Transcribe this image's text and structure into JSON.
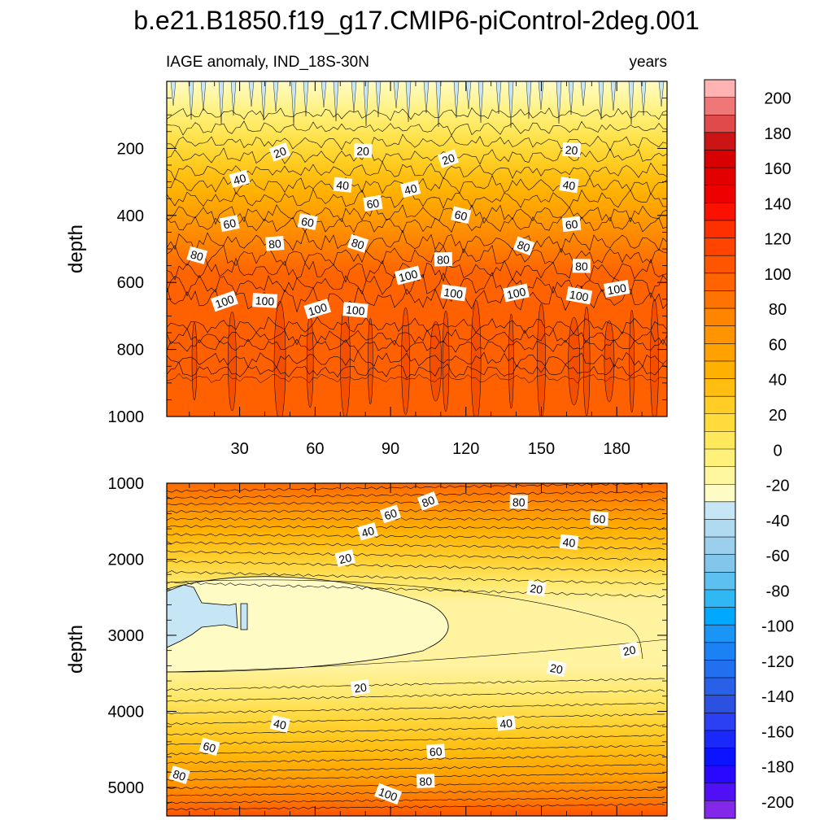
{
  "chart_data": {
    "type": "heatmap",
    "title": "b.e21.B1850.f19_g17.CMIP6-piControl-2deg.001",
    "variable_label": "IAGE anomaly, IND_18S-30N",
    "units_label": "years",
    "x_range": [
      1,
      200
    ],
    "x_ticks": [
      30,
      60,
      90,
      120,
      150,
      180
    ],
    "panels": [
      {
        "name": "upper",
        "ylabel": "depth",
        "ylim": [
          0,
          1000
        ],
        "y_ticks": [
          200,
          400,
          600,
          800,
          1000
        ],
        "contour_labels": [
          {
            "text": "20",
            "x": 46,
            "y": 212
          },
          {
            "text": "20",
            "x": 79,
            "y": 208
          },
          {
            "text": "20",
            "x": 113,
            "y": 232
          },
          {
            "text": "20",
            "x": 162,
            "y": 205
          },
          {
            "text": "40",
            "x": 30,
            "y": 292
          },
          {
            "text": "40",
            "x": 71,
            "y": 310
          },
          {
            "text": "40",
            "x": 98,
            "y": 322
          },
          {
            "text": "40",
            "x": 161,
            "y": 310
          },
          {
            "text": "60",
            "x": 26,
            "y": 425
          },
          {
            "text": "60",
            "x": 57,
            "y": 420
          },
          {
            "text": "60",
            "x": 83,
            "y": 365
          },
          {
            "text": "60",
            "x": 118,
            "y": 400
          },
          {
            "text": "60",
            "x": 162,
            "y": 427
          },
          {
            "text": "80",
            "x": 13,
            "y": 520
          },
          {
            "text": "80",
            "x": 44,
            "y": 485
          },
          {
            "text": "80",
            "x": 77,
            "y": 485
          },
          {
            "text": "80",
            "x": 111,
            "y": 532
          },
          {
            "text": "80",
            "x": 143,
            "y": 492
          },
          {
            "text": "80",
            "x": 166,
            "y": 552
          },
          {
            "text": "100",
            "x": 24,
            "y": 657
          },
          {
            "text": "100",
            "x": 40,
            "y": 655
          },
          {
            "text": "100",
            "x": 61,
            "y": 680
          },
          {
            "text": "100",
            "x": 76,
            "y": 683
          },
          {
            "text": "100",
            "x": 97,
            "y": 580
          },
          {
            "text": "100",
            "x": 115,
            "y": 632
          },
          {
            "text": "100",
            "x": 140,
            "y": 632
          },
          {
            "text": "100",
            "x": 165,
            "y": 640
          },
          {
            "text": "100",
            "x": 180,
            "y": 620
          }
        ]
      },
      {
        "name": "lower",
        "ylabel": "depth",
        "ylim": [
          1000,
          5375
        ],
        "y_ticks": [
          1000,
          2000,
          3000,
          4000,
          5000
        ],
        "contour_labels": [
          {
            "text": "80",
            "x": 105,
            "y": 1240
          },
          {
            "text": "80",
            "x": 141,
            "y": 1250
          },
          {
            "text": "60",
            "x": 90,
            "y": 1410
          },
          {
            "text": "60",
            "x": 173,
            "y": 1470
          },
          {
            "text": "40",
            "x": 81,
            "y": 1640
          },
          {
            "text": "40",
            "x": 161,
            "y": 1780
          },
          {
            "text": "20",
            "x": 72,
            "y": 1990
          },
          {
            "text": "20",
            "x": 148,
            "y": 2390
          },
          {
            "text": "20",
            "x": 185,
            "y": 3200
          },
          {
            "text": "20",
            "x": 156,
            "y": 3440
          },
          {
            "text": "20",
            "x": 78,
            "y": 3690
          },
          {
            "text": "40",
            "x": 46,
            "y": 4170
          },
          {
            "text": "40",
            "x": 136,
            "y": 4160
          },
          {
            "text": "60",
            "x": 18,
            "y": 4470
          },
          {
            "text": "60",
            "x": 108,
            "y": 4530
          },
          {
            "text": "80",
            "x": 6,
            "y": 4840
          },
          {
            "text": "80",
            "x": 104,
            "y": 4920
          },
          {
            "text": "100",
            "x": 89,
            "y": 5090
          }
        ]
      }
    ],
    "colorbar": {
      "labels": [
        "200",
        "180",
        "160",
        "140",
        "120",
        "100",
        "80",
        "60",
        "40",
        "20",
        "0",
        "-20",
        "-40",
        "-60",
        "-80",
        "-100",
        "-120",
        "-140",
        "-160",
        "-180",
        "-200"
      ],
      "levels": [
        200,
        180,
        160,
        140,
        120,
        100,
        80,
        60,
        40,
        20,
        0,
        -20,
        -40,
        -60,
        -80,
        -100,
        -120,
        -140,
        -160,
        -180,
        -200
      ],
      "colors": [
        "#ffb3b3",
        "#f07777",
        "#e04a4a",
        "#cc1414",
        "#d80000",
        "#e20000",
        "#ee0000",
        "#fb1100",
        "#ff3000",
        "#ff4400",
        "#ff5400",
        "#ff6400",
        "#ff7400",
        "#ff8400",
        "#ff9400",
        "#ffa200",
        "#ffb000",
        "#ffbe10",
        "#ffce24",
        "#ffdc3c",
        "#ffe85c",
        "#fff07a",
        "#fff6a0",
        "#fffbc4",
        "#c6e5f5",
        "#b0daf0",
        "#9ccfec",
        "#82c6ec",
        "#5cc0f0",
        "#30b8f5",
        "#00a8ff",
        "#1b95f5",
        "#1a82f5",
        "#2070f0",
        "#2860e8",
        "#2c50e0",
        "#2a40f2",
        "#1a28fa",
        "#0c14ff",
        "#2a08ff",
        "#5010f5",
        "#8228e8"
      ]
    },
    "panel_colors": {
      "upper_bands": [
        "#fffbc4",
        "#fff6a0",
        "#fff07a",
        "#ffe85c",
        "#ffdc3c",
        "#ffce24",
        "#ffbe10",
        "#ffb000",
        "#ffa200",
        "#ff9400",
        "#ff8400",
        "#ff7400",
        "#ff6400"
      ],
      "upper_deep": "#ff6000",
      "upper_streak": "#f25000",
      "negative": "#c6e5f5"
    }
  }
}
